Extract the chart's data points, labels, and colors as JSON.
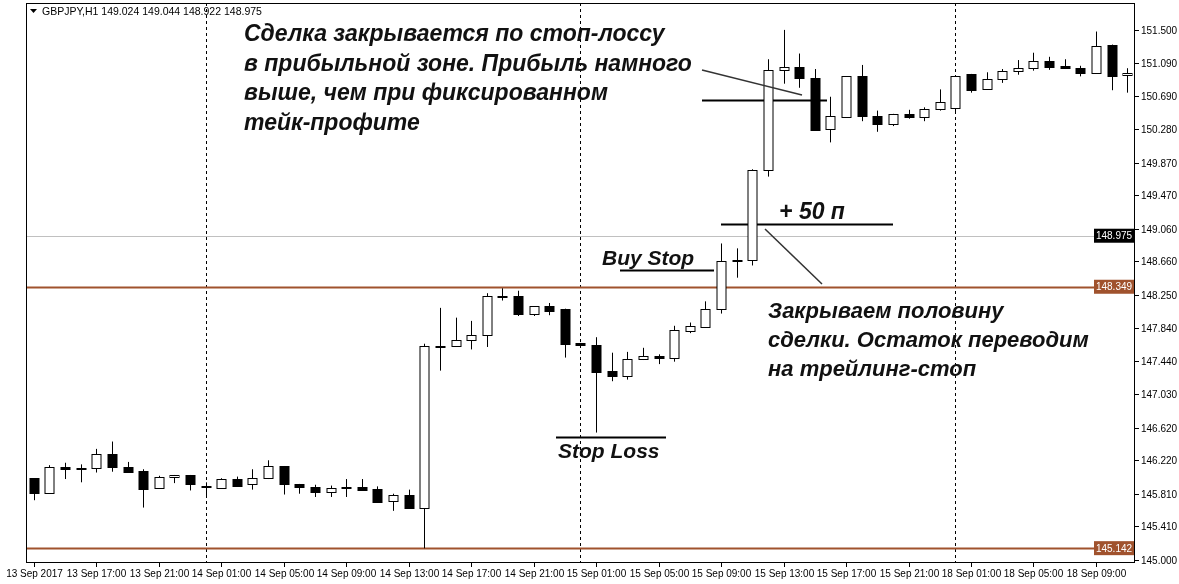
{
  "chart_data": {
    "type": "candlestick",
    "title": "GBPJPY,H1 149.024 149.044 148.922 148.975",
    "color": "#000000",
    "grid": "x",
    "categories": [
      "13 Sep 2017",
      null,
      null,
      null,
      "13 Sep 17:00",
      null,
      null,
      null,
      "13 Sep 21:00",
      null,
      null,
      null,
      "14 Sep 01:00",
      null,
      null,
      null,
      "14 Sep 05:00",
      null,
      null,
      null,
      "14 Sep 09:00",
      null,
      null,
      null,
      "14 Sep 13:00",
      null,
      null,
      null,
      "14 Sep 17:00",
      null,
      null,
      null,
      "14 Sep 21:00",
      null,
      null,
      null,
      "15 Sep 01:00",
      null,
      null,
      null,
      "15 Sep 05:00",
      null,
      null,
      null,
      "15 Sep 09:00",
      null,
      null,
      null,
      "15 Sep 13:00",
      null,
      null,
      null,
      "15 Sep 17:00",
      null,
      null,
      null,
      "15 Sep 21:00",
      null,
      null,
      null,
      "18 Sep 01:00",
      null,
      null,
      null,
      "18 Sep 05:00",
      null,
      null,
      null,
      "18 Sep 09:00",
      null,
      null
    ],
    "ohlc": [
      [
        146.0,
        146.0,
        145.73,
        145.82
      ],
      [
        145.82,
        146.16,
        145.81,
        146.14
      ],
      [
        146.14,
        146.19,
        145.99,
        146.11
      ],
      [
        146.12,
        146.17,
        145.95,
        146.11
      ],
      [
        146.13,
        146.36,
        146.07,
        146.3
      ],
      [
        146.3,
        146.45,
        146.08,
        146.14
      ],
      [
        146.14,
        146.2,
        146.08,
        146.08
      ],
      [
        146.09,
        146.11,
        145.64,
        145.87
      ],
      [
        145.88,
        146.03,
        145.87,
        146.02
      ],
      [
        146.02,
        146.04,
        145.94,
        146.04
      ],
      [
        146.04,
        146.04,
        145.85,
        145.93
      ],
      [
        145.9,
        145.95,
        145.78,
        145.89
      ],
      [
        145.88,
        146.0,
        145.88,
        145.99
      ],
      [
        145.99,
        146.02,
        145.91,
        145.91
      ],
      [
        145.93,
        146.11,
        145.86,
        146.0
      ],
      [
        146.0,
        146.22,
        145.99,
        146.15
      ],
      [
        146.15,
        146.15,
        145.8,
        145.93
      ],
      [
        145.93,
        145.93,
        145.81,
        145.89
      ],
      [
        145.89,
        145.92,
        145.77,
        145.83
      ],
      [
        145.83,
        145.91,
        145.77,
        145.88
      ],
      [
        145.89,
        145.99,
        145.77,
        145.88
      ],
      [
        145.89,
        145.99,
        145.86,
        145.86
      ],
      [
        145.87,
        145.9,
        145.71,
        145.71
      ],
      [
        145.72,
        145.81,
        145.6,
        145.8
      ],
      [
        145.8,
        145.86,
        145.63,
        145.63
      ],
      [
        145.63,
        147.65,
        145.14,
        147.62
      ],
      [
        147.62,
        148.09,
        147.32,
        147.61
      ],
      [
        147.62,
        147.97,
        147.61,
        147.7
      ],
      [
        147.69,
        147.93,
        147.58,
        147.76
      ],
      [
        147.76,
        148.27,
        147.61,
        148.24
      ],
      [
        148.24,
        148.33,
        148.18,
        148.23
      ],
      [
        148.23,
        148.3,
        147.99,
        148.02
      ],
      [
        148.02,
        148.11,
        147.99,
        148.11
      ],
      [
        148.11,
        148.15,
        148.0,
        148.05
      ],
      [
        148.07,
        148.08,
        147.48,
        147.65
      ],
      [
        147.66,
        147.66,
        147.63,
        147.63
      ],
      [
        147.64,
        147.73,
        146.56,
        147.3
      ],
      [
        147.31,
        147.54,
        147.19,
        147.26
      ],
      [
        147.26,
        147.55,
        147.21,
        147.46
      ],
      [
        147.46,
        147.6,
        147.45,
        147.5
      ],
      [
        147.5,
        147.52,
        147.4,
        147.47
      ],
      [
        147.47,
        147.87,
        147.43,
        147.82
      ],
      [
        147.81,
        147.91,
        147.78,
        147.87
      ],
      [
        147.86,
        148.17,
        147.85,
        148.08
      ],
      [
        148.08,
        148.88,
        148.02,
        148.67
      ],
      [
        148.68,
        148.82,
        148.46,
        148.66
      ],
      [
        148.68,
        149.79,
        148.61,
        149.78
      ],
      [
        149.78,
        151.14,
        149.7,
        151.01
      ],
      [
        151.01,
        151.5,
        150.84,
        151.04
      ],
      [
        151.04,
        151.21,
        150.79,
        150.91
      ],
      [
        150.91,
        151.02,
        150.27,
        150.27
      ],
      [
        150.28,
        150.68,
        150.12,
        150.44
      ],
      [
        150.43,
        150.93,
        150.43,
        150.93
      ],
      [
        150.93,
        151.07,
        150.38,
        150.44
      ],
      [
        150.44,
        150.51,
        150.25,
        150.35
      ],
      [
        150.35,
        150.47,
        150.32,
        150.47
      ],
      [
        150.47,
        150.52,
        150.41,
        150.43
      ],
      [
        150.43,
        150.55,
        150.38,
        150.53
      ],
      [
        150.53,
        150.77,
        150.51,
        150.61
      ],
      [
        150.54,
        150.93,
        150.5,
        150.93
      ],
      [
        150.96,
        150.96,
        150.73,
        150.76
      ],
      [
        150.77,
        150.98,
        150.77,
        150.9
      ],
      [
        150.9,
        151.02,
        150.85,
        151.0
      ],
      [
        151.0,
        151.13,
        150.95,
        151.03
      ],
      [
        151.03,
        151.22,
        151.0,
        151.12
      ],
      [
        151.12,
        151.17,
        151.01,
        151.05
      ],
      [
        151.06,
        151.14,
        151.02,
        151.03
      ],
      [
        151.03,
        151.06,
        150.93,
        150.97
      ],
      [
        150.97,
        151.48,
        150.97,
        151.3
      ],
      [
        151.32,
        151.32,
        150.76,
        150.94
      ],
      [
        150.95,
        151.03,
        150.73,
        150.97
      ]
    ],
    "ylim": [
      144.96,
      151.83
    ],
    "yticks": [
      {
        "value": 151.5,
        "label": "151.500"
      },
      {
        "value": 151.09,
        "label": "151.090"
      },
      {
        "value": 150.69,
        "label": "150.690"
      },
      {
        "value": 150.28,
        "label": "150.280"
      },
      {
        "value": 149.87,
        "label": "149.870"
      },
      {
        "value": 149.47,
        "label": "149.470"
      },
      {
        "value": 149.06,
        "label": "149.060"
      },
      {
        "value": 148.66,
        "label": "148.660"
      },
      {
        "value": 148.25,
        "label": "148.250"
      },
      {
        "value": 147.84,
        "label": "147.840"
      },
      {
        "value": 147.44,
        "label": "147.440"
      },
      {
        "value": 147.03,
        "label": "147.030"
      },
      {
        "value": 146.62,
        "label": "146.620"
      },
      {
        "value": 146.22,
        "label": "146.220"
      },
      {
        "value": 145.81,
        "label": "145.810"
      },
      {
        "value": 145.41,
        "label": "145.410"
      },
      {
        "value": 145.0,
        "label": "145.000"
      }
    ],
    "ref_lines": [
      {
        "axis": "y",
        "value": 148.975,
        "label": "148.975",
        "color": "#c0c0c0"
      },
      {
        "axis": "y",
        "value": 148.349,
        "label": "148.349",
        "color": "#a0522d"
      },
      {
        "axis": "y",
        "value": 145.142,
        "label": "145.142",
        "color": "#a0522d"
      },
      {
        "axis": "y",
        "value": 150.64,
        "label": "Сделка закрывается по стоп-лоссу\nв прибыльной зоне. Прибыль намного\nвыше, чем при фиксированном\nтейк-профите",
        "color": "#000000"
      },
      {
        "axis": "y",
        "value": 149.12,
        "label": "+ 50 п",
        "color": "#000000"
      },
      {
        "axis": "y",
        "value": 148.55,
        "label": "Buy Stop",
        "color": "#000000"
      },
      {
        "axis": "y",
        "value": 146.5,
        "label": "Stop Loss",
        "color": "#000000"
      }
    ],
    "annotations": [
      "Закрываем половину\nсделки. Остаток переводим\nна трейлинг-стоп"
    ]
  }
}
